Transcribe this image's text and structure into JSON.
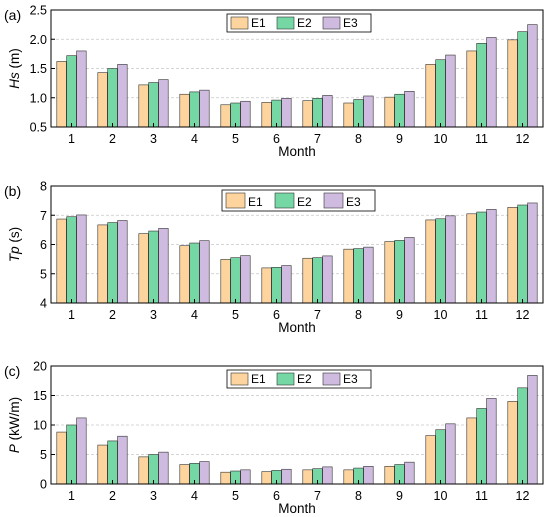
{
  "categories": [
    "1",
    "2",
    "3",
    "4",
    "5",
    "6",
    "7",
    "8",
    "9",
    "10",
    "11",
    "12"
  ],
  "colors": {
    "E1": "#fdd49e",
    "E2": "#74d7a4",
    "E3": "#cfbbe0",
    "axis": "#000000",
    "grid": "#c8c8c8"
  },
  "chart_data": [
    {
      "type": "bar",
      "panel_label": "(a)",
      "title": "",
      "xlabel": "Month",
      "ylabel": "Hs (m)",
      "ylabel_italic": "Hs",
      "ylabel_unit": " (m)",
      "ylim": [
        0.5,
        2.5
      ],
      "yticks": [
        0.5,
        1.0,
        1.5,
        2.0,
        2.5
      ],
      "ytick_labels": [
        "0.5",
        "1.0",
        "1.5",
        "2.0",
        "2.5"
      ],
      "grid": true,
      "legend": "top-center",
      "categories": [
        "1",
        "2",
        "3",
        "4",
        "5",
        "6",
        "7",
        "8",
        "9",
        "10",
        "11",
        "12"
      ],
      "series": [
        {
          "name": "E1",
          "values": [
            1.62,
            1.43,
            1.22,
            1.06,
            0.88,
            0.92,
            0.95,
            0.91,
            1.01,
            1.57,
            1.8,
            1.99
          ]
        },
        {
          "name": "E2",
          "values": [
            1.72,
            1.5,
            1.26,
            1.1,
            0.91,
            0.96,
            0.99,
            0.97,
            1.06,
            1.65,
            1.93,
            2.13
          ]
        },
        {
          "name": "E3",
          "values": [
            1.8,
            1.57,
            1.31,
            1.13,
            0.94,
            0.99,
            1.04,
            1.03,
            1.11,
            1.73,
            2.03,
            2.25
          ]
        }
      ]
    },
    {
      "type": "bar",
      "panel_label": "(b)",
      "title": "",
      "xlabel": "Month",
      "ylabel": "Tp (s)",
      "ylabel_italic": "Tp",
      "ylabel_unit": " (s)",
      "ylim": [
        4,
        8
      ],
      "yticks": [
        4,
        5,
        6,
        7,
        8
      ],
      "ytick_labels": [
        "4",
        "5",
        "6",
        "7",
        "8"
      ],
      "grid": true,
      "legend": "top-center",
      "categories": [
        "1",
        "2",
        "3",
        "4",
        "5",
        "6",
        "7",
        "8",
        "9",
        "10",
        "11",
        "12"
      ],
      "series": [
        {
          "name": "E1",
          "values": [
            6.87,
            6.67,
            6.37,
            5.96,
            5.49,
            5.2,
            5.53,
            5.84,
            6.1,
            6.84,
            7.05,
            7.27
          ]
        },
        {
          "name": "E2",
          "values": [
            6.95,
            6.75,
            6.46,
            6.05,
            5.55,
            5.22,
            5.55,
            5.86,
            6.14,
            6.88,
            7.11,
            7.35
          ]
        },
        {
          "name": "E3",
          "values": [
            7.01,
            6.82,
            6.55,
            6.13,
            5.62,
            5.28,
            5.61,
            5.91,
            6.24,
            6.98,
            7.2,
            7.42
          ]
        }
      ]
    },
    {
      "type": "bar",
      "panel_label": "(c)",
      "title": "",
      "xlabel": "Month",
      "ylabel": "P (kW/m)",
      "ylabel_italic": "P",
      "ylabel_unit": " (kW/m)",
      "ylim": [
        0,
        20
      ],
      "yticks": [
        0,
        5,
        10,
        15,
        20
      ],
      "ytick_labels": [
        "0",
        "5",
        "10",
        "15",
        "20"
      ],
      "grid": true,
      "legend": "top-center",
      "categories": [
        "1",
        "2",
        "3",
        "4",
        "5",
        "6",
        "7",
        "8",
        "9",
        "10",
        "11",
        "12"
      ],
      "series": [
        {
          "name": "E1",
          "values": [
            8.8,
            6.6,
            4.6,
            3.3,
            2.0,
            2.1,
            2.4,
            2.4,
            3.0,
            8.2,
            11.2,
            14.0
          ]
        },
        {
          "name": "E2",
          "values": [
            10.0,
            7.3,
            5.0,
            3.5,
            2.2,
            2.3,
            2.6,
            2.7,
            3.3,
            9.2,
            12.8,
            16.3
          ]
        },
        {
          "name": "E3",
          "values": [
            11.2,
            8.1,
            5.4,
            3.8,
            2.4,
            2.5,
            2.9,
            3.0,
            3.7,
            10.2,
            14.5,
            18.4
          ]
        }
      ]
    }
  ]
}
